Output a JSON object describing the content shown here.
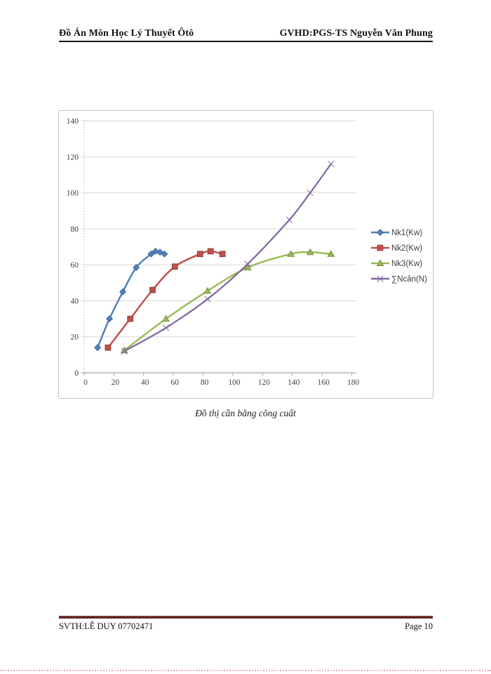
{
  "header": {
    "left": "Đồ Án Môn Học Lý Thuyết Ôtô",
    "right": "GVHD:PGS-TS Nguyễn Văn Phung"
  },
  "caption": "Đồ thị cần bằng công cuất",
  "footer": {
    "left": "SVTH:LÊ DUY 07702471",
    "right": "Page 10"
  },
  "colors": {
    "footer_rule": "#632423",
    "page_break_dots": "#F2ABCA",
    "chart_border": "#C6C6C6",
    "grid": "#D9D9D9",
    "axis": "#A6A6A6",
    "tick_text": "#3F3F3F",
    "legend_text": "#3F3F3F"
  },
  "chart_data": {
    "type": "line",
    "title": "",
    "xlabel": "",
    "ylabel": "",
    "xlim": [
      0,
      185
    ],
    "ylim": [
      0,
      140
    ],
    "xticks": [
      0,
      20,
      40,
      60,
      80,
      100,
      120,
      140,
      160,
      180
    ],
    "yticks": [
      0,
      20,
      40,
      60,
      80,
      100,
      120,
      140
    ],
    "grid": "horizontal",
    "legend_position": "right-middle",
    "series": [
      {
        "name": "Nk1(Kw)",
        "color": "#4F81BD",
        "marker": "diamond",
        "x": [
          9,
          17,
          26,
          35,
          45,
          48,
          51,
          54
        ],
        "y": [
          14,
          30,
          45,
          58.5,
          66,
          67.5,
          67,
          66
        ]
      },
      {
        "name": "Nk2(Kw)",
        "color": "#C0504D",
        "marker": "square",
        "x": [
          16,
          31,
          46,
          61,
          78,
          85,
          93
        ],
        "y": [
          14,
          30,
          46,
          59,
          66,
          67.5,
          66
        ]
      },
      {
        "name": "Nk3(Kw)",
        "color": "#9BBB59",
        "marker": "triangle",
        "x": [
          27,
          55,
          83,
          110,
          139,
          152,
          166
        ],
        "y": [
          12.5,
          30,
          45.5,
          58.5,
          66,
          67,
          66
        ]
      },
      {
        "name": "∑Ncản(N)",
        "color": "#8064A2",
        "marker": "x",
        "x": [
          27,
          55,
          83,
          110,
          138,
          152,
          166
        ],
        "y": [
          12,
          25,
          41,
          60.5,
          85,
          100,
          116
        ]
      }
    ]
  }
}
